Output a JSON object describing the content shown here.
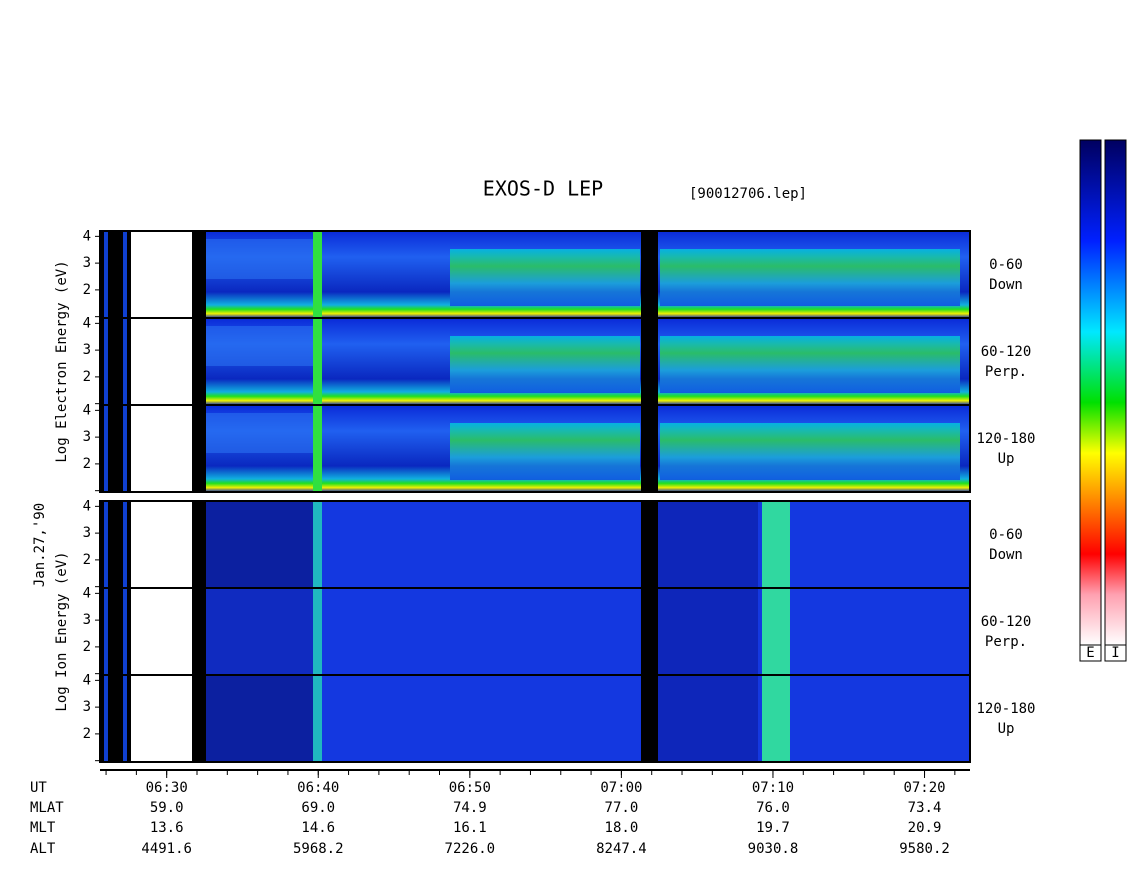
{
  "header": {
    "title": "EXOS-D LEP",
    "file": "[90012706.lep]"
  },
  "chart_data": {
    "type": "spectrogram",
    "date_label": "Jan.27,'90",
    "xlim": [
      385.6,
      443.0
    ],
    "xticks": [
      {
        "value": 390,
        "label": "06:30"
      },
      {
        "value": 400,
        "label": "06:40"
      },
      {
        "value": 410,
        "label": "06:50"
      },
      {
        "value": 420,
        "label": "07:00"
      },
      {
        "value": 430,
        "label": "07:10"
      },
      {
        "value": 440,
        "label": "07:20"
      }
    ],
    "xminorticks": [
      386,
      388,
      390,
      392,
      394,
      396,
      398,
      400,
      402,
      404,
      406,
      408,
      410,
      412,
      414,
      416,
      418,
      420,
      422,
      424,
      426,
      428,
      430,
      432,
      434,
      436,
      438,
      440,
      442
    ],
    "ylim": [
      0.95,
      4.2
    ],
    "yticks": [
      2,
      3,
      4
    ],
    "yminorticks": [
      1
    ],
    "groups": [
      {
        "axis_label": "Log Electron Energy (eV)",
        "panels": [
          {
            "label": [
              "0-60",
              "Down"
            ]
          },
          {
            "label": [
              "60-120",
              "Perp."
            ]
          },
          {
            "label": [
              "120-180",
              "Up"
            ]
          }
        ]
      },
      {
        "axis_label": "Log Ion Energy (eV)",
        "panels": [
          {
            "label": [
              "0-60",
              "Down"
            ]
          },
          {
            "label": [
              "60-120",
              "Perp."
            ]
          },
          {
            "label": [
              "120-180",
              "Up"
            ]
          }
        ]
      }
    ],
    "ephemeris": {
      "x_label": "UT",
      "rows": [
        {
          "name": "MLAT",
          "values": [
            "59.0",
            "69.0",
            "74.9",
            "77.0",
            "76.0",
            "73.4"
          ]
        },
        {
          "name": "MLT",
          "values": [
            "13.6",
            "14.6",
            "16.1",
            "18.0",
            "19.7",
            "20.9"
          ]
        },
        {
          "name": "ALT",
          "values": [
            "4491.6",
            "5968.2",
            "7226.0",
            "8247.4",
            "9030.8",
            "9580.2"
          ]
        }
      ]
    },
    "colorbars": [
      "E",
      "I"
    ]
  }
}
